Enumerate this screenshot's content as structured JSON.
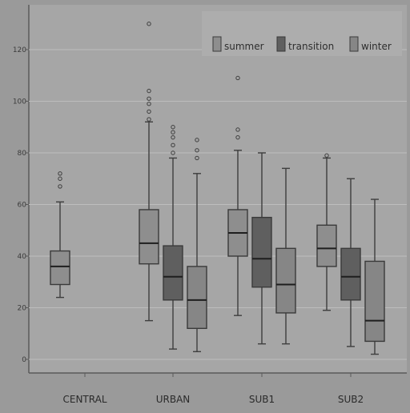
{
  "chart_data": {
    "type": "boxplot",
    "title": "",
    "xlabel": "",
    "ylabel": "",
    "ylim": [
      0,
      130
    ],
    "yticks": [
      0,
      20,
      40,
      60,
      80,
      100,
      120
    ],
    "grid": true,
    "legend_position": "top-right",
    "categories": [
      "CENTRAL",
      "URBAN",
      "SUB1",
      "SUB2"
    ],
    "series": [
      {
        "name": "summer",
        "color": "#8e8e8e"
      },
      {
        "name": "transition",
        "color": "#5f5f5f"
      },
      {
        "name": "winter",
        "color": "#868686"
      }
    ],
    "boxes": [
      {
        "category": "CENTRAL",
        "series": "summer",
        "min": 24,
        "q1": 29,
        "median": 36,
        "q3": 42,
        "max": 61,
        "outliers": [
          67,
          70,
          72
        ]
      },
      {
        "category": "URBAN",
        "series": "summer",
        "min": 15,
        "q1": 37,
        "median": 45,
        "q3": 58,
        "max": 92,
        "outliers": [
          93,
          96,
          99,
          101,
          104,
          130
        ]
      },
      {
        "category": "URBAN",
        "series": "transition",
        "min": 4,
        "q1": 23,
        "median": 32,
        "q3": 44,
        "max": 78,
        "outliers": [
          80,
          83,
          86,
          88,
          90
        ]
      },
      {
        "category": "URBAN",
        "series": "winter",
        "min": 3,
        "q1": 12,
        "median": 23,
        "q3": 36,
        "max": 72,
        "outliers": [
          78,
          81,
          85
        ]
      },
      {
        "category": "SUB1",
        "series": "summer",
        "min": 17,
        "q1": 40,
        "median": 49,
        "q3": 58,
        "max": 81,
        "outliers": [
          86,
          89,
          109
        ]
      },
      {
        "category": "SUB1",
        "series": "transition",
        "min": 6,
        "q1": 28,
        "median": 39,
        "q3": 55,
        "max": 80,
        "outliers": []
      },
      {
        "category": "SUB1",
        "series": "winter",
        "min": 6,
        "q1": 18,
        "median": 29,
        "q3": 43,
        "max": 74,
        "outliers": []
      },
      {
        "category": "SUB2",
        "series": "summer",
        "min": 19,
        "q1": 36,
        "median": 43,
        "q3": 52,
        "max": 78,
        "outliers": [
          79
        ]
      },
      {
        "category": "SUB2",
        "series": "transition",
        "min": 5,
        "q1": 23,
        "median": 32,
        "q3": 43,
        "max": 70,
        "outliers": []
      },
      {
        "category": "SUB2",
        "series": "winter",
        "min": 2,
        "q1": 7,
        "median": 15,
        "q3": 38,
        "max": 62,
        "outliers": []
      }
    ]
  }
}
